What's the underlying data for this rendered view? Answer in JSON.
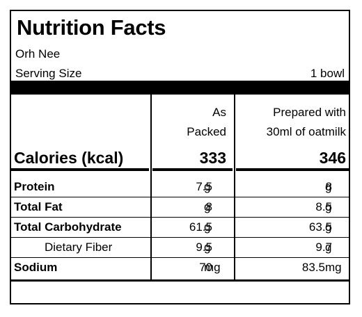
{
  "title": "Nutrition Facts",
  "product": "Orh Nee",
  "serving": {
    "label": "Serving Size",
    "value": "1 bowl"
  },
  "columns": {
    "as_packed": [
      "As",
      "Packed"
    ],
    "prepared": [
      "Prepared with",
      "30ml of oatmilk"
    ]
  },
  "calories": {
    "label": "Calories (kcal)",
    "as_packed": "333",
    "prepared": "346"
  },
  "nutrients": [
    {
      "name": "Protein",
      "packed_val": "7.5",
      "packed_unit": "g",
      "prep_val": "8",
      "prep_unit": "g"
    },
    {
      "name": "Total Fat",
      "packed_val": "8",
      "packed_unit": "g",
      "prep_val": "8.5",
      "prep_unit": "g"
    },
    {
      "name": "Total Carbohydrate",
      "packed_val": "61.5",
      "packed_unit": "g",
      "prep_val": "63.5",
      "prep_unit": "g"
    },
    {
      "name": "Dietary Fiber",
      "packed_val": "9.5",
      "packed_unit": "g",
      "prep_val": "9.7",
      "prep_unit": "g"
    },
    {
      "name": "Sodium",
      "packed_val": "70",
      "packed_unit": "mg",
      "prep_val": "83.5",
      "prep_unit": "mg"
    }
  ]
}
